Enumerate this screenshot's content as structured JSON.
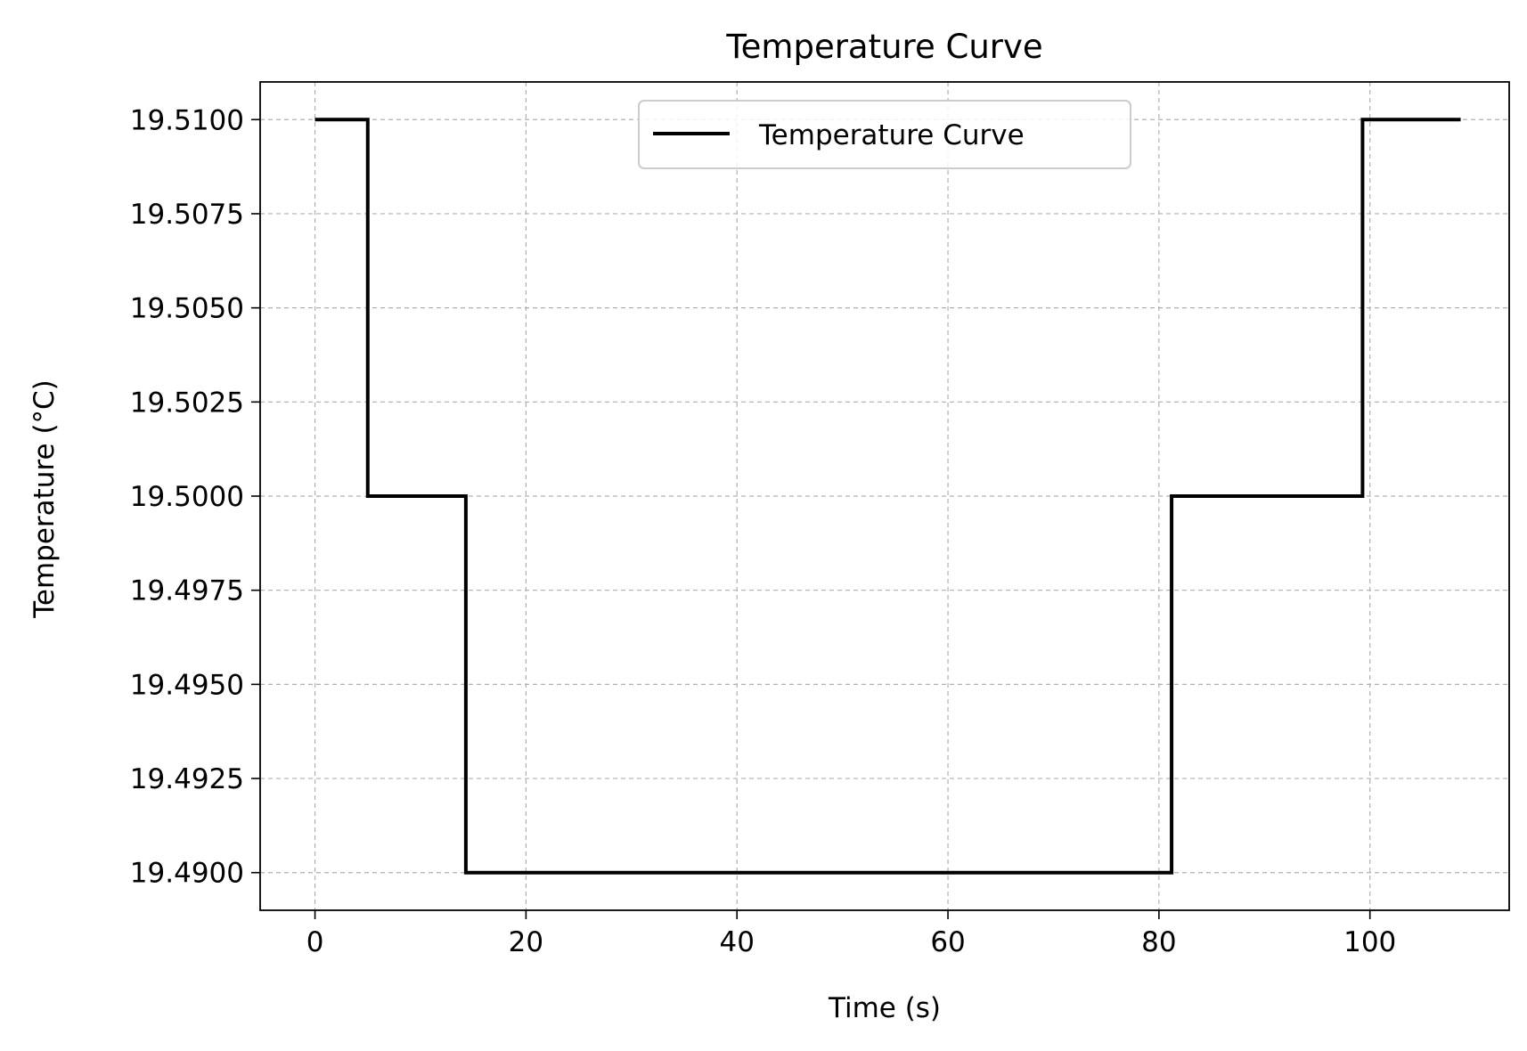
{
  "chart_data": {
    "type": "line",
    "title": "Temperature Curve",
    "xlabel": "Time (s)",
    "ylabel": "Temperature (°C)",
    "xlim": [
      -5.2,
      113.2
    ],
    "ylim": [
      19.489,
      19.511
    ],
    "x_ticks": [
      0,
      20,
      40,
      60,
      80,
      100
    ],
    "x_tick_labels": [
      "0",
      "20",
      "40",
      "60",
      "80",
      "100"
    ],
    "y_ticks": [
      19.49,
      19.4925,
      19.495,
      19.4975,
      19.5,
      19.5025,
      19.505,
      19.5075,
      19.51
    ],
    "y_tick_labels": [
      "19.4900",
      "19.4925",
      "19.4950",
      "19.4975",
      "19.5000",
      "19.5025",
      "19.5050",
      "19.5075",
      "19.5100"
    ],
    "grid": true,
    "legend": {
      "placement": "upper center",
      "entries": [
        "Temperature Curve"
      ]
    },
    "series": [
      {
        "name": "Temperature Curve",
        "color": "#000000",
        "x": [
          0,
          5,
          5,
          14.3,
          14.3,
          81.2,
          81.2,
          99.3,
          99.3,
          108.6
        ],
        "y": [
          19.51,
          19.51,
          19.5,
          19.5,
          19.49,
          19.49,
          19.5,
          19.5,
          19.51,
          19.51
        ]
      }
    ]
  }
}
